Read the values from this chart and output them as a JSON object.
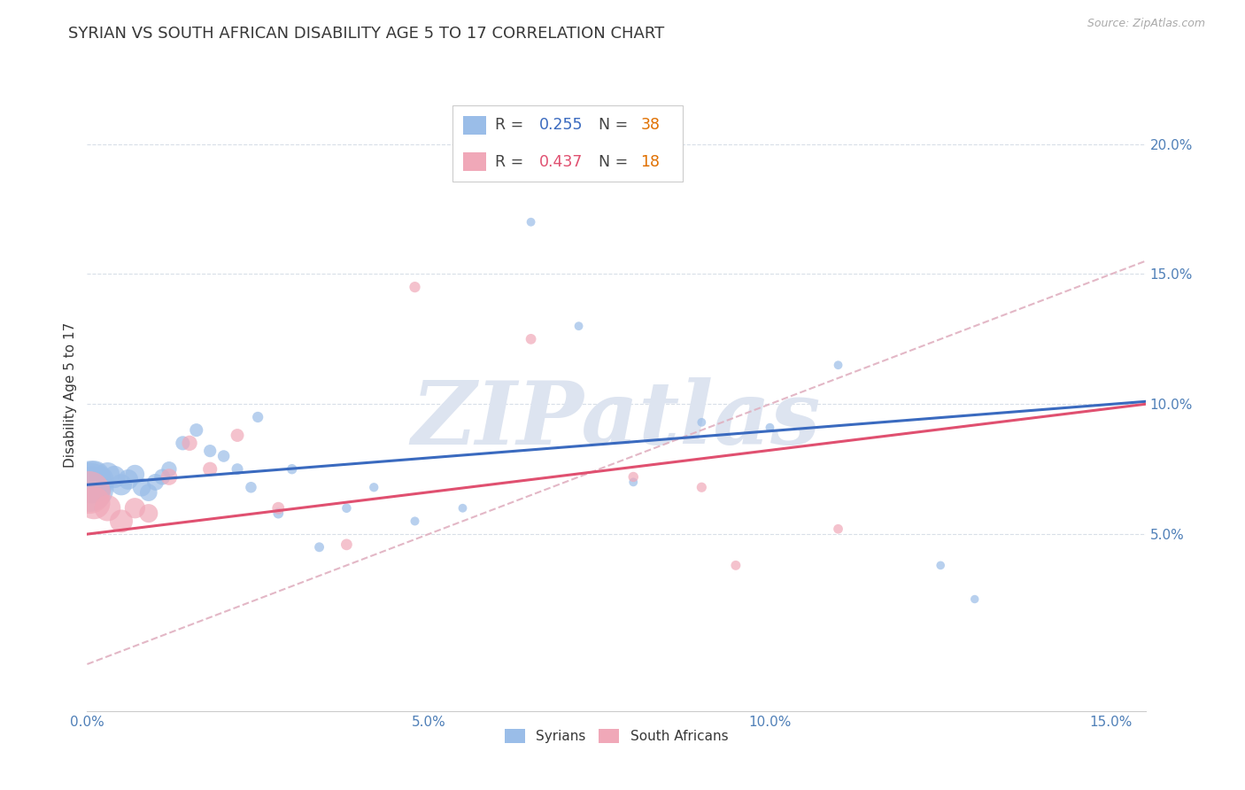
{
  "title": "SYRIAN VS SOUTH AFRICAN DISABILITY AGE 5 TO 17 CORRELATION CHART",
  "source": "Source: ZipAtlas.com",
  "ylabel": "Disability Age 5 to 17",
  "xlim": [
    0.0,
    0.155
  ],
  "ylim": [
    -0.018,
    0.225
  ],
  "xticks": [
    0.0,
    0.05,
    0.1,
    0.15
  ],
  "yticks_right": [
    0.05,
    0.1,
    0.15,
    0.2
  ],
  "syrians_x": [
    0.0003,
    0.0005,
    0.0008,
    0.001,
    0.0015,
    0.002,
    0.003,
    0.004,
    0.005,
    0.006,
    0.007,
    0.008,
    0.009,
    0.01,
    0.011,
    0.012,
    0.014,
    0.016,
    0.018,
    0.02,
    0.022,
    0.024,
    0.025,
    0.028,
    0.03,
    0.034,
    0.038,
    0.042,
    0.048,
    0.055,
    0.065,
    0.072,
    0.08,
    0.09,
    0.1,
    0.11,
    0.125,
    0.13
  ],
  "syrians_y": [
    0.068,
    0.07,
    0.069,
    0.072,
    0.068,
    0.071,
    0.073,
    0.072,
    0.069,
    0.071,
    0.073,
    0.068,
    0.066,
    0.07,
    0.072,
    0.075,
    0.085,
    0.09,
    0.082,
    0.08,
    0.075,
    0.068,
    0.095,
    0.058,
    0.075,
    0.045,
    0.06,
    0.068,
    0.055,
    0.06,
    0.17,
    0.13,
    0.07,
    0.093,
    0.091,
    0.115,
    0.038,
    0.025
  ],
  "syrians_size": [
    1600,
    1200,
    900,
    700,
    550,
    450,
    380,
    330,
    300,
    270,
    240,
    220,
    200,
    185,
    170,
    155,
    135,
    118,
    105,
    95,
    88,
    82,
    78,
    72,
    68,
    62,
    58,
    55,
    52,
    50,
    50,
    50,
    50,
    50,
    50,
    50,
    48,
    46
  ],
  "sa_x": [
    0.0003,
    0.001,
    0.003,
    0.005,
    0.007,
    0.009,
    0.012,
    0.015,
    0.018,
    0.022,
    0.028,
    0.038,
    0.048,
    0.065,
    0.08,
    0.09,
    0.095,
    0.11
  ],
  "sa_y": [
    0.066,
    0.062,
    0.06,
    0.055,
    0.06,
    0.058,
    0.072,
    0.085,
    0.075,
    0.088,
    0.06,
    0.046,
    0.145,
    0.125,
    0.072,
    0.068,
    0.038,
    0.052
  ],
  "sa_size": [
    1200,
    700,
    450,
    350,
    280,
    230,
    180,
    155,
    135,
    115,
    100,
    85,
    78,
    72,
    68,
    65,
    62,
    60
  ],
  "syrian_line_x0": 0.0,
  "syrian_line_y0": 0.069,
  "syrian_line_x1": 0.15,
  "syrian_line_y1": 0.101,
  "sa_line_x0": 0.0,
  "sa_line_y0": 0.05,
  "sa_line_x1": 0.15,
  "sa_line_y1": 0.1,
  "dash_line_x0": 0.0,
  "dash_line_y0": 0.0,
  "dash_line_x1": 0.155,
  "dash_line_y1": 0.155,
  "syrian_line_color": "#3a6abf",
  "sa_line_color": "#e05070",
  "dashed_line_color": "#e0b0c0",
  "watermark_text": "ZIPatlas",
  "watermark_color": "#dde4f0",
  "bg_color": "#ffffff",
  "grid_color": "#d8dfe8",
  "tick_color": "#5080b8",
  "title_color": "#383838",
  "title_fontsize": 13,
  "ylabel_fontsize": 11,
  "source_fontsize": 9,
  "syrian_scatter_color": "#9abde8",
  "sa_scatter_color": "#f0a8b8",
  "N_color": "#e07000",
  "R_value_syrian_color": "#3a6abf",
  "R_value_sa_color": "#e05070"
}
